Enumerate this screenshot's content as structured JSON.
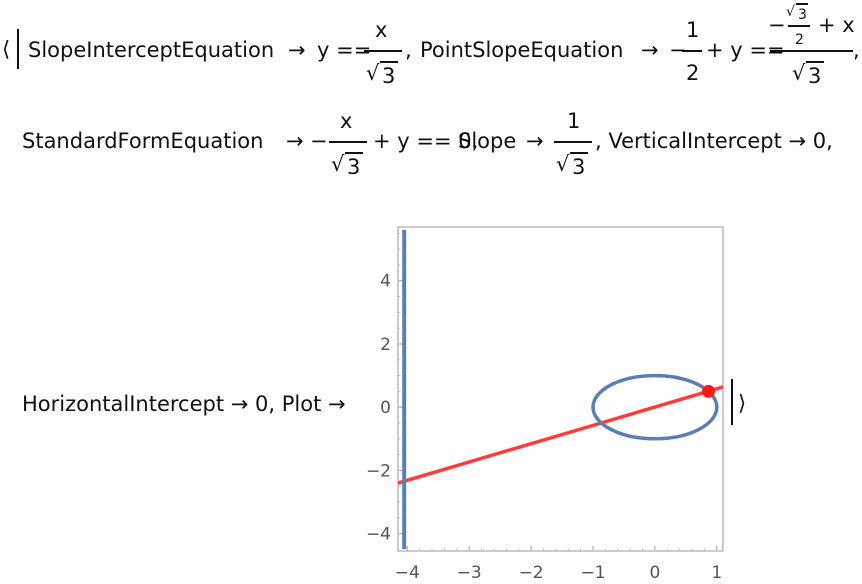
{
  "line1": {
    "open_bracket": "⟨",
    "slope_intercept_key": "SlopeInterceptEquation",
    "arrow": "→",
    "y_eq": "y ==",
    "x": "x",
    "sqrt3": "3",
    "comma": ",",
    "point_slope_key": "PointSlopeEquation",
    "minus": "−",
    "one": "1",
    "two": "2",
    "plus_y_eq": "+ y ==",
    "plus_x": "+ x"
  },
  "line2": {
    "standard_form_key": "StandardFormEquation",
    "minus": "−",
    "x": "x",
    "sqrt3": "3",
    "plus_y_eq_0": "+ y == 0,",
    "slope_key": "Slope",
    "one": "1",
    "vertical_intercept_text": ", VerticalIntercept → 0,"
  },
  "line3": {
    "horizontal_intercept_text": "HorizontalIntercept → 0, Plot →",
    "close_bracket": "⟩"
  },
  "chart_data": {
    "type": "line",
    "x_ticks": [
      "−4",
      "−3",
      "−2",
      "−1",
      "0",
      "1"
    ],
    "y_ticks": [
      "−4",
      "−2",
      "0",
      "2",
      "4"
    ],
    "xlim": [
      -4.15,
      1.1
    ],
    "ylim": [
      -4.55,
      5.7
    ],
    "series": [
      {
        "kind": "line",
        "color": "#ff3b3b",
        "x": [
          -4.15,
          1.1
        ],
        "y": [
          -2.4,
          0.64
        ]
      },
      {
        "kind": "vertical",
        "color": "#5b7fb5",
        "x": [
          -4.05,
          -4.05
        ],
        "y": [
          -4.55,
          5.7
        ]
      },
      {
        "kind": "ellipse",
        "color": "#5b7fb5",
        "center": [
          0,
          0
        ],
        "rx": 1.0,
        "ry": 1.0
      }
    ],
    "points": [
      {
        "x": 0.866,
        "y": 0.5,
        "color": "#ff1a1a"
      }
    ],
    "grid": false
  }
}
